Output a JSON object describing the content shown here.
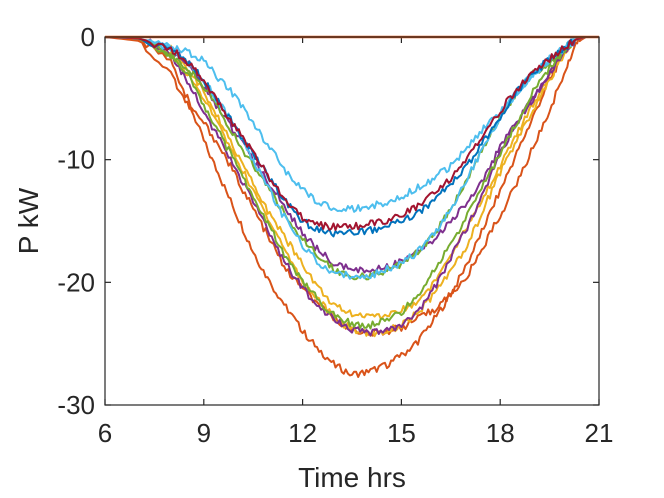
{
  "chart_data": {
    "type": "line",
    "xlabel": "Time hrs",
    "ylabel": "P kW",
    "xlim": [
      6,
      21
    ],
    "ylim": [
      -30,
      0
    ],
    "xticks": [
      6,
      9,
      12,
      15,
      18,
      21
    ],
    "yticks": [
      0,
      -10,
      -20,
      -30
    ],
    "grid": false,
    "legend": "none",
    "series": [
      {
        "color": "#D95319",
        "x": [
          6,
          7,
          8,
          8.5,
          9,
          9.5,
          10,
          10.5,
          11,
          11.5,
          12,
          12.5,
          13,
          13.5,
          14,
          14.5,
          15,
          15.5,
          16,
          16.5,
          17,
          17.5,
          18,
          18.5,
          19,
          19.5,
          20,
          20.3,
          20.6,
          21
        ],
        "y": [
          0,
          -0.2,
          -2,
          -5,
          -8.5,
          -11.5,
          -14.5,
          -17.5,
          -20,
          -22,
          -24,
          -25.5,
          -26.8,
          -27.5,
          -27.3,
          -26.8,
          -26,
          -24.8,
          -23,
          -21,
          -18.5,
          -15.5,
          -12.5,
          -9.5,
          -6.5,
          -3.5,
          -1,
          -0.2,
          0,
          0
        ]
      },
      {
        "color": "#D95319",
        "x": [
          6,
          7,
          8,
          8.5,
          9,
          9.5,
          10,
          10.5,
          11,
          11.5,
          12,
          12.5,
          13,
          13.5,
          14,
          14.5,
          15,
          15.5,
          16,
          16.5,
          17,
          17.5,
          18,
          18.5,
          19,
          19.5,
          20,
          20.3,
          20.6,
          21
        ],
        "y": [
          0,
          -0.3,
          -3,
          -5.5,
          -7,
          -9,
          -11.5,
          -14,
          -16.5,
          -19,
          -20.5,
          -22,
          -23,
          -23.8,
          -24.2,
          -24,
          -23.7,
          -23,
          -22.2,
          -21,
          -19.5,
          -17,
          -14.5,
          -12,
          -9,
          -6,
          -2.5,
          -0.5,
          0,
          0
        ]
      },
      {
        "color": "#EDB120",
        "x": [
          6,
          7,
          8,
          8.5,
          9,
          9.5,
          10,
          10.5,
          11,
          11.5,
          12,
          12.5,
          13,
          13.5,
          14,
          14.5,
          15,
          15.5,
          16,
          16.5,
          17,
          17.5,
          18,
          18.5,
          19,
          19.5,
          20,
          20.3,
          20.6,
          21
        ],
        "y": [
          0,
          -0.1,
          -1.5,
          -3,
          -5,
          -7.5,
          -10,
          -12.5,
          -15,
          -17.5,
          -20,
          -21.5,
          -23,
          -23.8,
          -24.2,
          -24,
          -23.5,
          -22.5,
          -21,
          -19,
          -17,
          -14,
          -11,
          -8.5,
          -6,
          -3.5,
          -1,
          -0.2,
          0,
          0
        ]
      },
      {
        "color": "#EDB120",
        "x": [
          6,
          7,
          8,
          8.5,
          9,
          9.5,
          10,
          10.5,
          11,
          11.5,
          12,
          12.5,
          13,
          13.5,
          14,
          14.5,
          15,
          15.5,
          16,
          16.5,
          17,
          17.5,
          18,
          18.5,
          19,
          19.5,
          20,
          20.3,
          20.6,
          21
        ],
        "y": [
          0,
          -0.1,
          -1,
          -2.5,
          -4.5,
          -7,
          -9.5,
          -12,
          -14.5,
          -16.5,
          -18.5,
          -20.5,
          -22,
          -22.5,
          -22.8,
          -22.7,
          -22.3,
          -21.5,
          -20,
          -18,
          -15.5,
          -13,
          -10.5,
          -8,
          -5.5,
          -3,
          -1,
          -0.2,
          0,
          0
        ]
      },
      {
        "color": "#7E2F8E",
        "x": [
          6,
          7,
          8,
          8.5,
          9,
          9.5,
          10,
          10.5,
          11,
          11.5,
          12,
          12.5,
          13,
          13.5,
          14,
          14.5,
          15,
          15.5,
          16,
          16.5,
          17,
          17.5,
          18,
          18.5,
          19,
          19.5,
          20,
          20.3,
          20.6,
          21
        ],
        "y": [
          0,
          -0.1,
          -1.5,
          -3.5,
          -6,
          -8.5,
          -11,
          -13.5,
          -16,
          -18.5,
          -20.5,
          -22,
          -23,
          -23.8,
          -24.2,
          -24,
          -23.5,
          -22.5,
          -20.5,
          -18,
          -15.5,
          -12.5,
          -9.5,
          -7,
          -5,
          -3,
          -1,
          -0.2,
          0,
          0
        ]
      },
      {
        "color": "#7E2F8E",
        "x": [
          6,
          7,
          8,
          8.5,
          9,
          9.5,
          10,
          10.5,
          11,
          11.5,
          12,
          12.5,
          13,
          13.5,
          14,
          14.5,
          15,
          15.5,
          16,
          16.5,
          17,
          17.5,
          18,
          18.5,
          19,
          19.5,
          20,
          20.3,
          20.6,
          21
        ],
        "y": [
          0,
          -0.1,
          -1,
          -2,
          -4,
          -6,
          -8,
          -10,
          -12,
          -14,
          -16,
          -17.5,
          -18.5,
          -19,
          -19,
          -18.8,
          -18.3,
          -17.5,
          -16.5,
          -15,
          -13.5,
          -11.5,
          -9,
          -7,
          -5,
          -3,
          -1,
          -0.2,
          0,
          0
        ]
      },
      {
        "color": "#77AC30",
        "x": [
          6,
          7,
          8,
          8.5,
          9,
          9.5,
          10,
          10.5,
          11,
          11.5,
          12,
          12.5,
          13,
          13.5,
          14,
          14.5,
          15,
          15.5,
          16,
          16.5,
          17,
          17.5,
          18,
          18.5,
          19,
          19.5,
          20,
          20.3,
          20.6,
          21
        ],
        "y": [
          0,
          -0.1,
          -1.5,
          -3,
          -5.5,
          -8,
          -10.5,
          -13,
          -15.5,
          -18,
          -20,
          -21.5,
          -22.8,
          -23.4,
          -23.5,
          -23.2,
          -22.5,
          -21,
          -19,
          -17,
          -14.5,
          -12,
          -9.5,
          -7,
          -4.5,
          -2.5,
          -1,
          -0.2,
          0,
          0
        ]
      },
      {
        "color": "#77AC30",
        "x": [
          6,
          7,
          8,
          8.5,
          9,
          9.5,
          10,
          10.5,
          11,
          11.5,
          12,
          12.5,
          13,
          13.5,
          14,
          14.5,
          15,
          15.5,
          16,
          16.5,
          17,
          17.5,
          18,
          18.5,
          19,
          19.5,
          20,
          20.3,
          20.6,
          21
        ],
        "y": [
          0,
          -0.1,
          -1.5,
          -2.5,
          -4,
          -6,
          -8.5,
          -10.5,
          -12.5,
          -14.5,
          -16.5,
          -18,
          -19,
          -19.5,
          -19.5,
          -19.2,
          -18.5,
          -17.5,
          -16,
          -14,
          -11.5,
          -9,
          -6.5,
          -4.5,
          -3,
          -2,
          -0.8,
          -0.2,
          0,
          0
        ]
      },
      {
        "color": "#4DBEEE",
        "x": [
          6,
          7,
          8,
          8.5,
          9,
          9.5,
          10,
          10.5,
          11,
          11.5,
          12,
          12.5,
          13,
          13.5,
          14,
          14.5,
          15,
          15.5,
          16,
          16.5,
          17,
          17.5,
          18,
          18.5,
          19,
          19.5,
          20,
          20.3,
          20.6,
          21
        ],
        "y": [
          0,
          -0.1,
          -0.8,
          -1.2,
          -2,
          -3.5,
          -5,
          -7,
          -9,
          -11,
          -12.5,
          -13.5,
          -14,
          -14,
          -13.8,
          -13.5,
          -13,
          -12.3,
          -11.5,
          -10.5,
          -9,
          -7.5,
          -6,
          -4.5,
          -3,
          -1.8,
          -0.8,
          -0.2,
          0,
          0
        ]
      },
      {
        "color": "#4DBEEE",
        "x": [
          6,
          7,
          8,
          8.5,
          9,
          9.5,
          10,
          10.5,
          11,
          11.5,
          12,
          12.5,
          13,
          13.5,
          14,
          14.5,
          15,
          15.5,
          16,
          16.5,
          17,
          17.5,
          18,
          18.5,
          19,
          19.5,
          20,
          20.3,
          20.6,
          21
        ],
        "y": [
          0,
          -0.1,
          -1,
          -2,
          -3.5,
          -5.5,
          -7.5,
          -10,
          -12.5,
          -15,
          -17,
          -18.5,
          -19.2,
          -19.5,
          -19.5,
          -19,
          -18.5,
          -17.5,
          -16,
          -14,
          -11.5,
          -9,
          -6.5,
          -4.5,
          -3,
          -2,
          -0.8,
          -0.2,
          0,
          0
        ]
      },
      {
        "color": "#0072BD",
        "x": [
          6,
          7,
          8,
          8.5,
          9,
          9.5,
          10,
          10.5,
          11,
          11.5,
          12,
          12.5,
          13,
          13.5,
          14,
          14.5,
          15,
          15.5,
          16,
          16.5,
          17,
          17.5,
          18,
          18.5,
          19,
          19.5,
          20,
          20.3,
          20.6,
          21
        ],
        "y": [
          0,
          -0.1,
          -1,
          -2,
          -3.5,
          -5.5,
          -7.5,
          -9.5,
          -11.5,
          -13.5,
          -15,
          -15.8,
          -16,
          -16,
          -15.8,
          -15.5,
          -15,
          -14.3,
          -13.3,
          -12,
          -10.5,
          -8.5,
          -6.5,
          -4.5,
          -3,
          -1.8,
          -0.8,
          -0.2,
          0,
          0
        ]
      },
      {
        "color": "#A2142F",
        "x": [
          6,
          7,
          8,
          8.5,
          9,
          9.5,
          10,
          10.5,
          11,
          11.5,
          12,
          12.5,
          13,
          13.5,
          14,
          14.5,
          15,
          15.5,
          16,
          16.5,
          17,
          17.5,
          18,
          18.5,
          19,
          19.5,
          20,
          20.3,
          20.6,
          21
        ],
        "y": [
          0,
          -0.1,
          -1,
          -2,
          -3.5,
          -5.5,
          -7.5,
          -9.5,
          -11.5,
          -13.5,
          -14.8,
          -15.3,
          -15.5,
          -15.5,
          -15.3,
          -15,
          -14.5,
          -13.8,
          -12.8,
          -11.5,
          -10,
          -8,
          -6,
          -4.3,
          -2.8,
          -1.8,
          -0.8,
          -0.2,
          0,
          0
        ]
      }
    ]
  }
}
